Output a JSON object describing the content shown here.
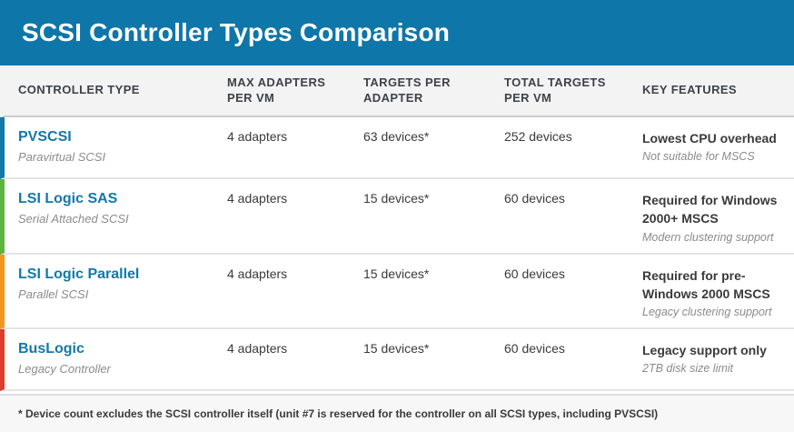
{
  "title": "SCSI Controller Types Comparison",
  "columns": [
    "CONTROLLER TYPE",
    "MAX ADAPTERS PER VM",
    "TARGETS PER ADAPTER",
    "TOTAL TARGETS PER VM",
    "KEY FEATURES"
  ],
  "rows": [
    {
      "name": "PVSCSI",
      "subtitle": "Paravirtual SCSI",
      "accent": "#1278aa",
      "max_adapters": "4 adapters",
      "targets_per_adapter": "63 devices*",
      "total_targets": "252 devices",
      "key_feature": "Lowest CPU overhead",
      "key_feature_note": "Not suitable for MSCS"
    },
    {
      "name": "LSI Logic SAS",
      "subtitle": "Serial Attached SCSI",
      "accent": "#5db33b",
      "max_adapters": "4 adapters",
      "targets_per_adapter": "15 devices*",
      "total_targets": "60 devices",
      "key_feature": "Required for Windows 2000+ MSCS",
      "key_feature_note": "Modern clustering support"
    },
    {
      "name": "LSI Logic Parallel",
      "subtitle": "Parallel SCSI",
      "accent": "#f7941d",
      "max_adapters": "4 adapters",
      "targets_per_adapter": "15 devices*",
      "total_targets": "60 devices",
      "key_feature": "Required for pre-Windows 2000 MSCS",
      "key_feature_note": "Legacy clustering support"
    },
    {
      "name": "BusLogic",
      "subtitle": "Legacy Controller",
      "accent": "#dc3d2e",
      "max_adapters": "4 adapters",
      "targets_per_adapter": "15 devices*",
      "total_targets": "60 devices",
      "key_feature": "Legacy support only",
      "key_feature_note": "2TB disk size limit"
    }
  ],
  "footnote": "* Device count excludes the SCSI controller itself (unit #7 is reserved for the controller on all SCSI types, including PVSCSI)",
  "colors": {
    "header_bar": "#0e76a8",
    "header_row_bg": "#f3f3f4",
    "footer_bg": "#f7f7f8",
    "accent_pvscsi": "#1278aa",
    "accent_lsi_sas": "#5db33b",
    "accent_lsi_parallel": "#f7941d",
    "accent_buslogic": "#dc3d2e"
  }
}
